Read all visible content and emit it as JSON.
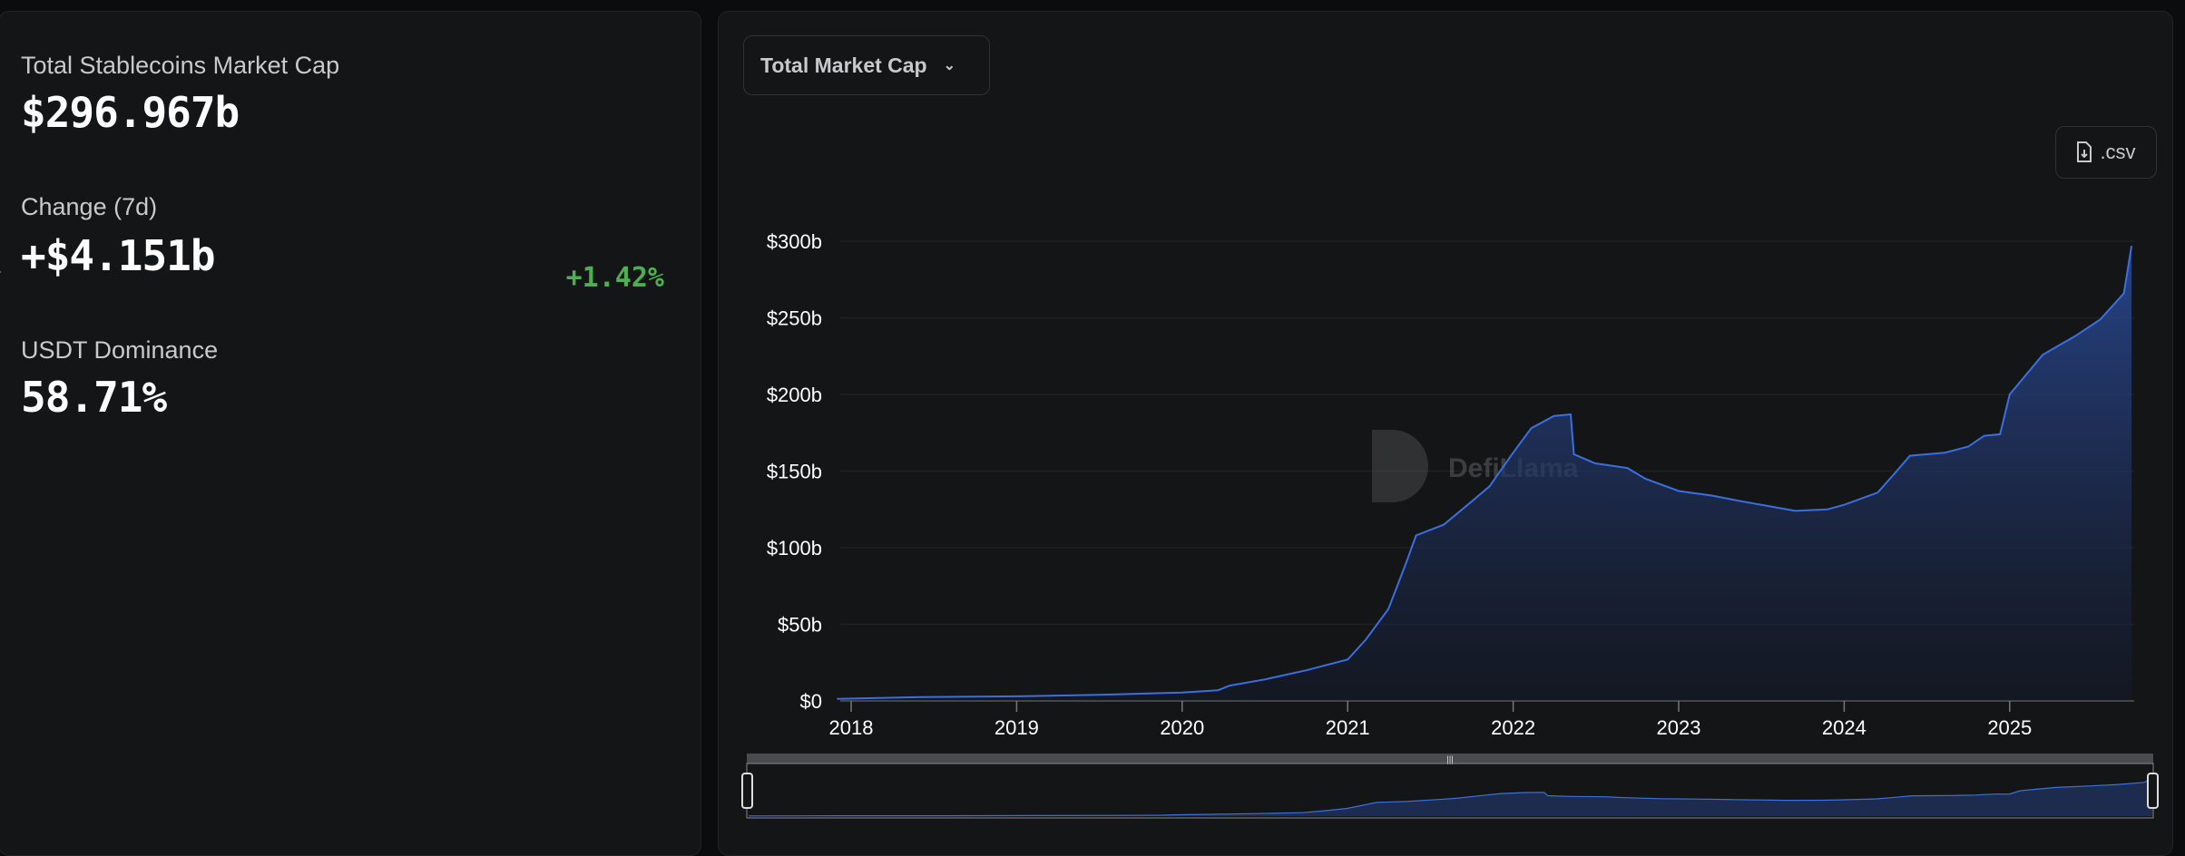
{
  "summary": {
    "total_label": "Total Stablecoins Market Cap",
    "total_value": "$296.967b",
    "change_label": "Change (7d)",
    "change_value": "+$4.151b",
    "change_percent": "+1.42%",
    "dominance_label": "USDT Dominance",
    "dominance_value": "58.71%"
  },
  "toolbar": {
    "metric_select": "Total Market Cap",
    "csv_label": ".csv"
  },
  "watermark": "DefiLlama",
  "colors": {
    "line": "#3b6fe0",
    "positive": "#4caf50",
    "background": "#141517"
  },
  "chart_data": {
    "type": "area",
    "xlabel": "",
    "ylabel": "",
    "ylim": [
      0,
      300
    ],
    "y_ticks": [
      "$0",
      "$50b",
      "$100b",
      "$150b",
      "$200b",
      "$250b",
      "$300b"
    ],
    "y_tick_values": [
      0,
      50,
      100,
      150,
      200,
      250,
      300
    ],
    "x_ticks": [
      "2018",
      "2019",
      "2020",
      "2021",
      "2022",
      "2023",
      "2024",
      "2025"
    ],
    "grid": true,
    "legend": "none",
    "points": [
      [
        "2017-12-01",
        1.3
      ],
      [
        "2018-06-01",
        2.5
      ],
      [
        "2019-01-01",
        3
      ],
      [
        "2019-07-01",
        4
      ],
      [
        "2020-01-01",
        5.5
      ],
      [
        "2020-03-20",
        7
      ],
      [
        "2020-04-15",
        10
      ],
      [
        "2020-07-01",
        14
      ],
      [
        "2020-10-01",
        20
      ],
      [
        "2021-01-01",
        27
      ],
      [
        "2021-02-10",
        40
      ],
      [
        "2021-04-01",
        60
      ],
      [
        "2021-05-10",
        90
      ],
      [
        "2021-06-01",
        108
      ],
      [
        "2021-08-01",
        115
      ],
      [
        "2021-10-01",
        130
      ],
      [
        "2021-11-10",
        140
      ],
      [
        "2022-01-01",
        162
      ],
      [
        "2022-02-10",
        178
      ],
      [
        "2022-04-01",
        186
      ],
      [
        "2022-05-08",
        187
      ],
      [
        "2022-05-15",
        161
      ],
      [
        "2022-07-01",
        155
      ],
      [
        "2022-09-10",
        152
      ],
      [
        "2022-10-20",
        145
      ],
      [
        "2023-01-01",
        137
      ],
      [
        "2023-03-15",
        134
      ],
      [
        "2023-05-25",
        130
      ],
      [
        "2023-08-10",
        126
      ],
      [
        "2023-09-15",
        124
      ],
      [
        "2023-11-25",
        125
      ],
      [
        "2024-01-01",
        128
      ],
      [
        "2024-03-15",
        136
      ],
      [
        "2024-04-20",
        148
      ],
      [
        "2024-05-25",
        160
      ],
      [
        "2024-08-10",
        162
      ],
      [
        "2024-10-01",
        166
      ],
      [
        "2024-11-05",
        173
      ],
      [
        "2024-12-10",
        174
      ],
      [
        "2025-01-01",
        200
      ],
      [
        "2025-03-15",
        226
      ],
      [
        "2025-05-25",
        238
      ],
      [
        "2025-07-20",
        249
      ],
      [
        "2025-09-10",
        266
      ],
      [
        "2025-09-27",
        296.967
      ]
    ]
  }
}
